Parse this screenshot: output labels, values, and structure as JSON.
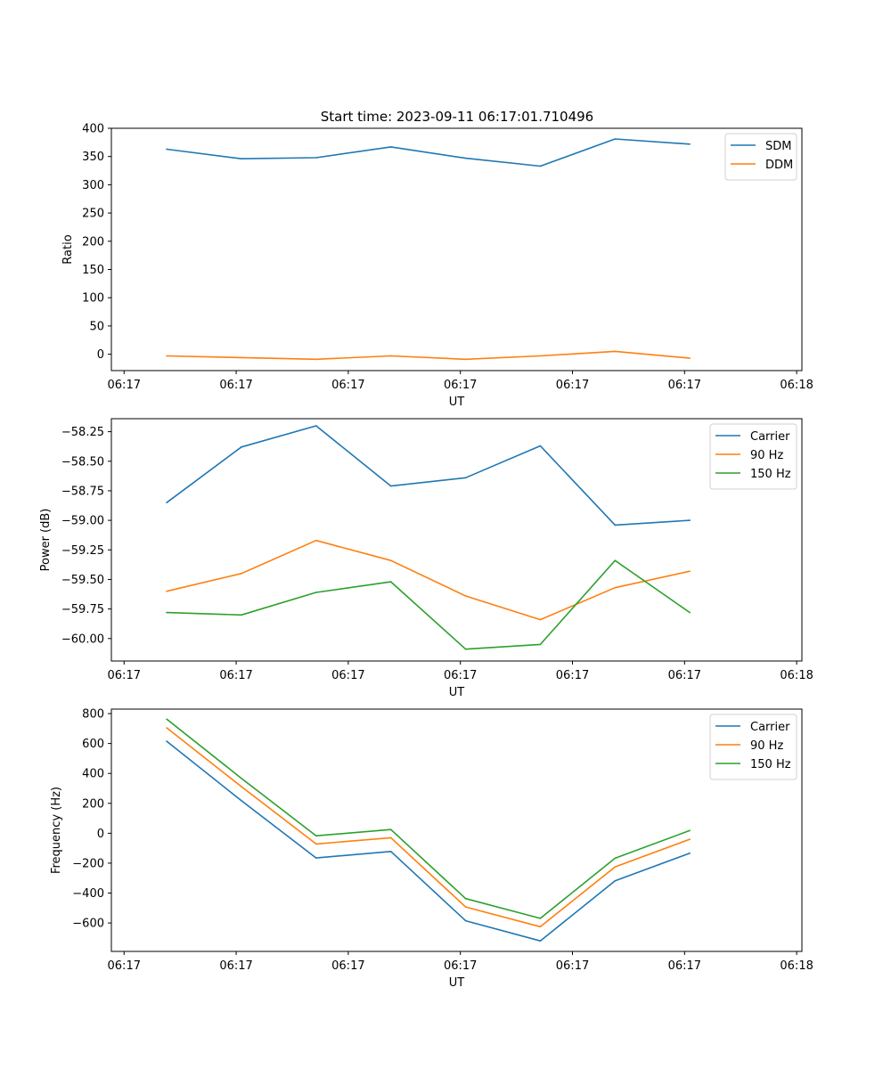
{
  "figure": {
    "title": "Start time: 2023-09-11 06:17:01.710496"
  },
  "colors": {
    "blue": "#1f77b4",
    "orange": "#ff7f0e",
    "green": "#2ca02c"
  },
  "chart_data": [
    {
      "id": "ratio",
      "type": "line",
      "title": "Start time: 2023-09-11 06:17:01.710496",
      "xlabel": "UT",
      "ylabel": "Ratio",
      "x": [
        1,
        2,
        3,
        4,
        5,
        6,
        7,
        8
      ],
      "xlim": [
        0.26,
        9.5
      ],
      "xticks": [
        0.43,
        1.93,
        3.43,
        4.93,
        6.43,
        7.93,
        9.43
      ],
      "xticklabels": [
        "06:17",
        "06:17",
        "06:17",
        "06:17",
        "06:17",
        "06:17",
        "06:18"
      ],
      "ylim": [
        -29,
        400
      ],
      "yticks": [
        0,
        50,
        100,
        150,
        200,
        250,
        300,
        350,
        400
      ],
      "yticklabels": [
        "0",
        "50",
        "100",
        "150",
        "200",
        "250",
        "300",
        "350",
        "400"
      ],
      "legend": "top-right",
      "series": [
        {
          "name": "SDM",
          "color": "#1f77b4",
          "values": [
            363,
            346,
            348,
            367,
            347,
            333,
            381,
            372
          ]
        },
        {
          "name": "DDM",
          "color": "#ff7f0e",
          "values": [
            -3,
            -6,
            -9,
            -3,
            -9,
            -3,
            5,
            -7
          ]
        }
      ]
    },
    {
      "id": "power",
      "type": "line",
      "title": "",
      "xlabel": "UT",
      "ylabel": "Power (dB)",
      "x": [
        1,
        2,
        3,
        4,
        5,
        6,
        7,
        8
      ],
      "xlim": [
        0.26,
        9.5
      ],
      "xticks": [
        0.43,
        1.93,
        3.43,
        4.93,
        6.43,
        7.93,
        9.43
      ],
      "xticklabels": [
        "06:17",
        "06:17",
        "06:17",
        "06:17",
        "06:17",
        "06:17",
        "06:18"
      ],
      "ylim": [
        -60.19,
        -58.14
      ],
      "yticks": [
        -60.0,
        -59.75,
        -59.5,
        -59.25,
        -59.0,
        -58.75,
        -58.5,
        -58.25
      ],
      "yticklabels": [
        "−60.00",
        "−59.75",
        "−59.50",
        "−59.25",
        "−59.00",
        "−58.75",
        "−58.50",
        "−58.25"
      ],
      "legend": "top-right",
      "series": [
        {
          "name": "Carrier",
          "color": "#1f77b4",
          "values": [
            -58.85,
            -58.38,
            -58.2,
            -58.71,
            -58.64,
            -58.37,
            -59.04,
            -59.0
          ]
        },
        {
          "name": "90 Hz",
          "color": "#ff7f0e",
          "values": [
            -59.6,
            -59.45,
            -59.17,
            -59.34,
            -59.64,
            -59.84,
            -59.57,
            -59.43
          ]
        },
        {
          "name": "150 Hz",
          "color": "#2ca02c",
          "values": [
            -59.78,
            -59.8,
            -59.61,
            -59.52,
            -60.09,
            -60.05,
            -59.34,
            -59.78
          ]
        }
      ]
    },
    {
      "id": "frequency",
      "type": "line",
      "title": "",
      "xlabel": "UT",
      "ylabel": "Frequency (Hz)",
      "x": [
        1,
        2,
        3,
        4,
        5,
        6,
        7,
        8
      ],
      "xlim": [
        0.26,
        9.5
      ],
      "xticks": [
        0.43,
        1.93,
        3.43,
        4.93,
        6.43,
        7.93,
        9.43
      ],
      "xticklabels": [
        "06:17",
        "06:17",
        "06:17",
        "06:17",
        "06:17",
        "06:17",
        "06:18"
      ],
      "ylim": [
        -790,
        830
      ],
      "yticks": [
        -600,
        -400,
        -200,
        0,
        200,
        400,
        600,
        800
      ],
      "yticklabels": [
        "−600",
        "−400",
        "−200",
        "0",
        "200",
        "400",
        "600",
        "800"
      ],
      "legend": "top-right",
      "series": [
        {
          "name": "Carrier",
          "color": "#1f77b4",
          "values": [
            615,
            218,
            -165,
            -122,
            -585,
            -720,
            -318,
            -133
          ]
        },
        {
          "name": "90 Hz",
          "color": "#ff7f0e",
          "values": [
            705,
            312,
            -72,
            -30,
            -493,
            -625,
            -225,
            -40
          ]
        },
        {
          "name": "150 Hz",
          "color": "#2ca02c",
          "values": [
            763,
            367,
            -17,
            25,
            -437,
            -569,
            -167,
            18
          ]
        }
      ]
    }
  ]
}
